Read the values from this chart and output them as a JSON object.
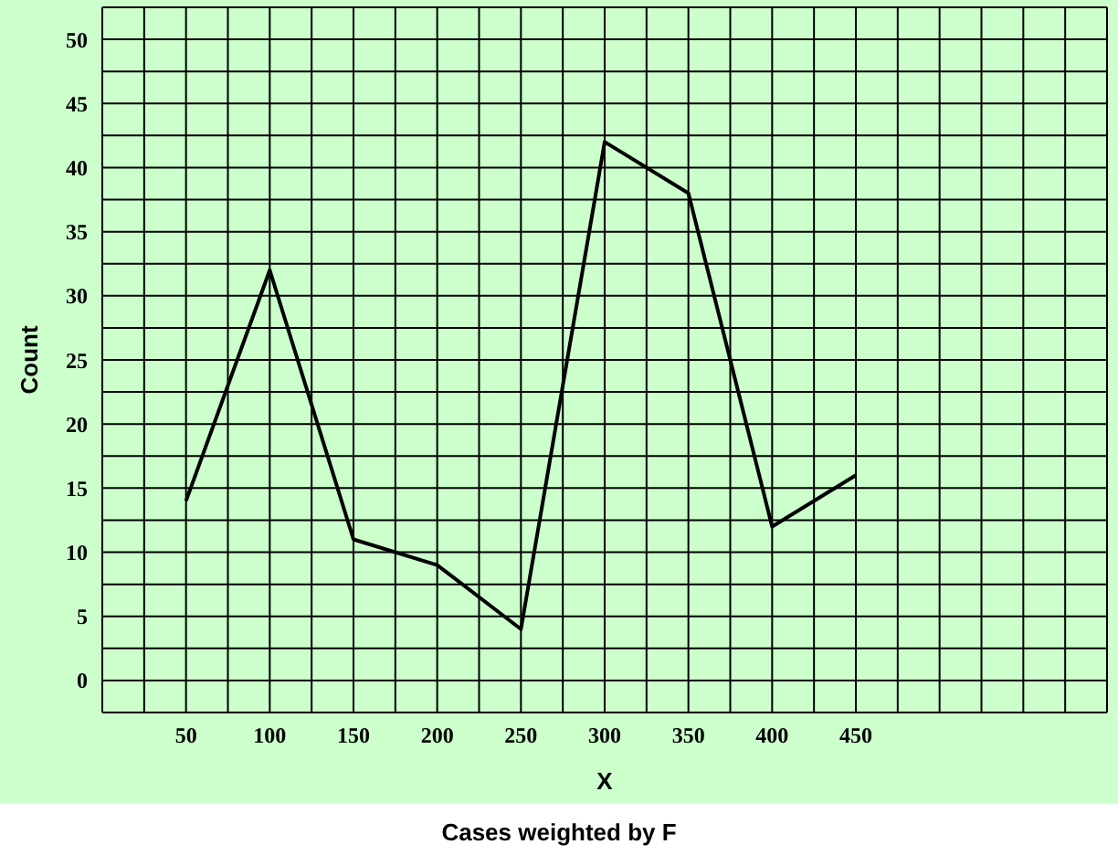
{
  "chart_data": {
    "type": "line",
    "xlabel": "X",
    "ylabel": "Count",
    "annotations": [
      "Cases weighted by F"
    ],
    "x": [
      50,
      100,
      150,
      200,
      250,
      300,
      350,
      400,
      450
    ],
    "series": [
      {
        "color": "#000000",
        "values": [
          14,
          32,
          11,
          9,
          4,
          42,
          38,
          12,
          16
        ]
      }
    ],
    "xlim": [
      0,
      600
    ],
    "xticks": [
      50,
      100,
      150,
      200,
      250,
      300,
      350,
      400,
      450
    ],
    "ylim": [
      -2.5,
      52.5
    ],
    "yticks": [
      0,
      5,
      10,
      15,
      20,
      25,
      30,
      35,
      40,
      45,
      50
    ],
    "grid": true,
    "legend": false,
    "marker": "none",
    "line_style": "solid"
  }
}
